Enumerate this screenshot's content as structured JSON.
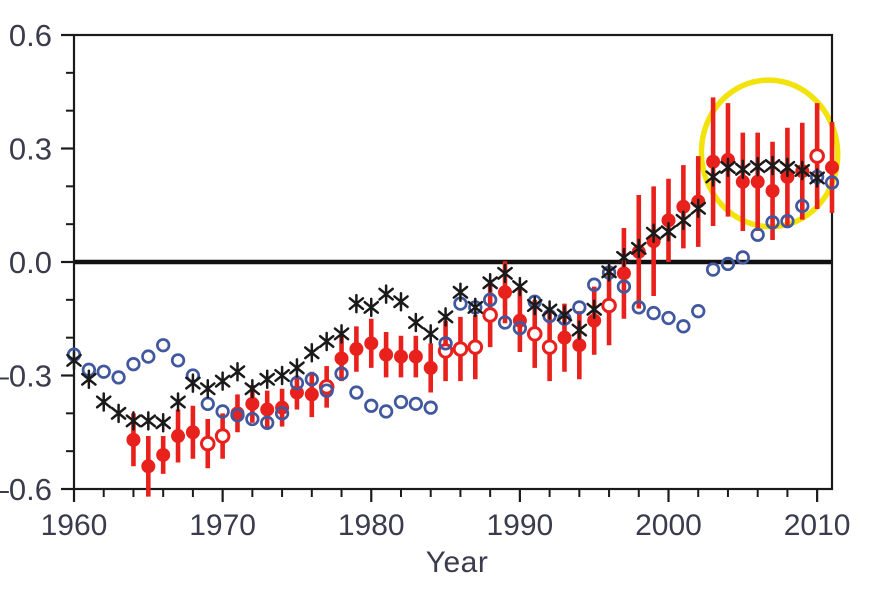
{
  "chart_data": {
    "type": "scatter",
    "title": "",
    "xlabel": "Year",
    "ylabel": "",
    "xlim": [
      1960,
      2011
    ],
    "ylim": [
      -0.6,
      0.6
    ],
    "grid": false,
    "zero_line": true,
    "x_axis": {
      "tick_values": [
        1960,
        1970,
        1980,
        1990,
        2000,
        2010
      ],
      "tick_labels": [
        "1960",
        "1970",
        "1980",
        "1990",
        "2000",
        "2010"
      ],
      "minor_step": 2
    },
    "y_axis": {
      "tick_values": [
        0.6,
        0.3,
        0.0,
        -0.3,
        -0.6
      ],
      "tick_labels": [
        "0.6",
        "0.3",
        "0.0",
        "–0.3",
        "–0.6"
      ],
      "minor_step": 0.1
    },
    "colors": {
      "red": "#e8211c",
      "blue": "#41589e",
      "black": "#1a1a1a",
      "yellow": "#f1e30b",
      "axis": "#1a1a1a",
      "labels": "#3b3b4d"
    },
    "series": [
      {
        "name": "red-dots-with-error-bars",
        "marker": "circle-with-error-bar",
        "color": "#e8211c",
        "note": "points are [year, value, error_halfwidth, open_marker(1)/filled(0)]",
        "points": [
          [
            1964,
            -0.47,
            0.07,
            0
          ],
          [
            1965,
            -0.54,
            0.08,
            0
          ],
          [
            1966,
            -0.51,
            0.05,
            0
          ],
          [
            1967,
            -0.46,
            0.07,
            0
          ],
          [
            1968,
            -0.45,
            0.07,
            0
          ],
          [
            1969,
            -0.48,
            0.065,
            1
          ],
          [
            1970,
            -0.46,
            0.06,
            1
          ],
          [
            1971,
            -0.4,
            0.05,
            0
          ],
          [
            1972,
            -0.375,
            0.05,
            0
          ],
          [
            1973,
            -0.39,
            0.05,
            0
          ],
          [
            1974,
            -0.385,
            0.05,
            0
          ],
          [
            1975,
            -0.345,
            0.045,
            0
          ],
          [
            1976,
            -0.35,
            0.06,
            0
          ],
          [
            1977,
            -0.33,
            0.055,
            1
          ],
          [
            1978,
            -0.255,
            0.06,
            0
          ],
          [
            1979,
            -0.23,
            0.06,
            0
          ],
          [
            1980,
            -0.215,
            0.065,
            0
          ],
          [
            1981,
            -0.245,
            0.06,
            0
          ],
          [
            1982,
            -0.25,
            0.055,
            0
          ],
          [
            1983,
            -0.25,
            0.055,
            0
          ],
          [
            1984,
            -0.28,
            0.065,
            0
          ],
          [
            1985,
            -0.235,
            0.08,
            1
          ],
          [
            1986,
            -0.23,
            0.085,
            1
          ],
          [
            1987,
            -0.225,
            0.085,
            1
          ],
          [
            1988,
            -0.14,
            0.085,
            1
          ],
          [
            1989,
            -0.08,
            0.082,
            0
          ],
          [
            1990,
            -0.155,
            0.083,
            0
          ],
          [
            1991,
            -0.19,
            0.09,
            1
          ],
          [
            1992,
            -0.225,
            0.09,
            1
          ],
          [
            1993,
            -0.2,
            0.09,
            0
          ],
          [
            1994,
            -0.22,
            0.09,
            0
          ],
          [
            1995,
            -0.155,
            0.09,
            0
          ],
          [
            1996,
            -0.115,
            0.105,
            1
          ],
          [
            1997,
            -0.03,
            0.12,
            0
          ],
          [
            1998,
            0.027,
            0.15,
            0
          ],
          [
            1999,
            0.055,
            0.145,
            0
          ],
          [
            2000,
            0.11,
            0.11,
            0
          ],
          [
            2001,
            0.146,
            0.11,
            0
          ],
          [
            2002,
            0.16,
            0.12,
            0
          ],
          [
            2003,
            0.265,
            0.17,
            0
          ],
          [
            2004,
            0.27,
            0.15,
            0
          ],
          [
            2005,
            0.212,
            0.13,
            0
          ],
          [
            2006,
            0.212,
            0.13,
            0
          ],
          [
            2007,
            0.188,
            0.13,
            0
          ],
          [
            2008,
            0.225,
            0.13,
            0
          ],
          [
            2009,
            0.24,
            0.128,
            0
          ],
          [
            2010,
            0.28,
            0.14,
            1
          ],
          [
            2011,
            0.25,
            0.12,
            0
          ]
        ]
      },
      {
        "name": "blue-open-circles",
        "marker": "open-circle",
        "color": "#41589e",
        "points": [
          [
            1960,
            -0.245
          ],
          [
            1961,
            -0.285
          ],
          [
            1962,
            -0.29
          ],
          [
            1963,
            -0.305
          ],
          [
            1964,
            -0.27
          ],
          [
            1965,
            -0.25
          ],
          [
            1966,
            -0.22
          ],
          [
            1967,
            -0.26
          ],
          [
            1968,
            -0.3
          ],
          [
            1969,
            -0.375
          ],
          [
            1970,
            -0.395
          ],
          [
            1971,
            -0.405
          ],
          [
            1972,
            -0.415
          ],
          [
            1973,
            -0.425
          ],
          [
            1974,
            -0.4
          ],
          [
            1975,
            -0.32
          ],
          [
            1976,
            -0.31
          ],
          [
            1977,
            -0.34
          ],
          [
            1978,
            -0.295
          ],
          [
            1979,
            -0.345
          ],
          [
            1980,
            -0.38
          ],
          [
            1981,
            -0.395
          ],
          [
            1982,
            -0.37
          ],
          [
            1983,
            -0.375
          ],
          [
            1984,
            -0.385
          ],
          [
            1985,
            -0.215
          ],
          [
            1986,
            -0.11
          ],
          [
            1987,
            -0.12
          ],
          [
            1988,
            -0.1
          ],
          [
            1989,
            -0.16
          ],
          [
            1990,
            -0.175
          ],
          [
            1991,
            -0.105
          ],
          [
            1992,
            -0.143
          ],
          [
            1993,
            -0.15
          ],
          [
            1994,
            -0.12
          ],
          [
            1995,
            -0.06
          ],
          [
            1996,
            -0.028
          ],
          [
            1997,
            -0.065
          ],
          [
            1998,
            -0.12
          ],
          [
            1999,
            -0.135
          ],
          [
            2000,
            -0.148
          ],
          [
            2001,
            -0.17
          ],
          [
            2002,
            -0.13
          ],
          [
            2003,
            -0.02
          ],
          [
            2004,
            -0.005
          ],
          [
            2005,
            0.012
          ],
          [
            2006,
            0.072
          ],
          [
            2007,
            0.105
          ],
          [
            2008,
            0.108
          ],
          [
            2009,
            0.148
          ],
          [
            2010,
            0.225
          ],
          [
            2011,
            0.21
          ]
        ]
      },
      {
        "name": "black-asterisks",
        "marker": "asterisk",
        "color": "#1a1a1a",
        "points": [
          [
            1960,
            -0.26
          ],
          [
            1961,
            -0.31
          ],
          [
            1962,
            -0.37
          ],
          [
            1963,
            -0.4
          ],
          [
            1964,
            -0.42
          ],
          [
            1965,
            -0.42
          ],
          [
            1966,
            -0.425
          ],
          [
            1967,
            -0.37
          ],
          [
            1968,
            -0.32
          ],
          [
            1969,
            -0.335
          ],
          [
            1970,
            -0.315
          ],
          [
            1971,
            -0.29
          ],
          [
            1972,
            -0.335
          ],
          [
            1973,
            -0.31
          ],
          [
            1974,
            -0.3
          ],
          [
            1975,
            -0.28
          ],
          [
            1976,
            -0.24
          ],
          [
            1977,
            -0.21
          ],
          [
            1978,
            -0.19
          ],
          [
            1979,
            -0.11
          ],
          [
            1980,
            -0.12
          ],
          [
            1981,
            -0.085
          ],
          [
            1982,
            -0.105
          ],
          [
            1983,
            -0.16
          ],
          [
            1984,
            -0.19
          ],
          [
            1985,
            -0.145
          ],
          [
            1986,
            -0.08
          ],
          [
            1987,
            -0.12
          ],
          [
            1988,
            -0.055
          ],
          [
            1989,
            -0.03
          ],
          [
            1990,
            -0.065
          ],
          [
            1991,
            -0.115
          ],
          [
            1992,
            -0.127
          ],
          [
            1993,
            -0.14
          ],
          [
            1994,
            -0.18
          ],
          [
            1995,
            -0.125
          ],
          [
            1996,
            -0.026
          ],
          [
            1997,
            0.012
          ],
          [
            1998,
            0.036
          ],
          [
            1999,
            0.076
          ],
          [
            2000,
            0.08
          ],
          [
            2001,
            0.11
          ],
          [
            2002,
            0.142
          ],
          [
            2003,
            0.225
          ],
          [
            2004,
            0.25
          ],
          [
            2005,
            0.245
          ],
          [
            2006,
            0.252
          ],
          [
            2007,
            0.255
          ],
          [
            2008,
            0.25
          ],
          [
            2009,
            0.242
          ],
          [
            2010,
            0.222
          ]
        ]
      }
    ],
    "annotations": [
      {
        "type": "ellipse",
        "name": "yellow-highlight-circle",
        "color": "#f1e30b",
        "center_x": 2006.8,
        "center_y": 0.287,
        "rx_years": 4.58,
        "ry_value": 0.194,
        "stroke_width": 5.5,
        "rotation_deg": -6
      }
    ]
  }
}
